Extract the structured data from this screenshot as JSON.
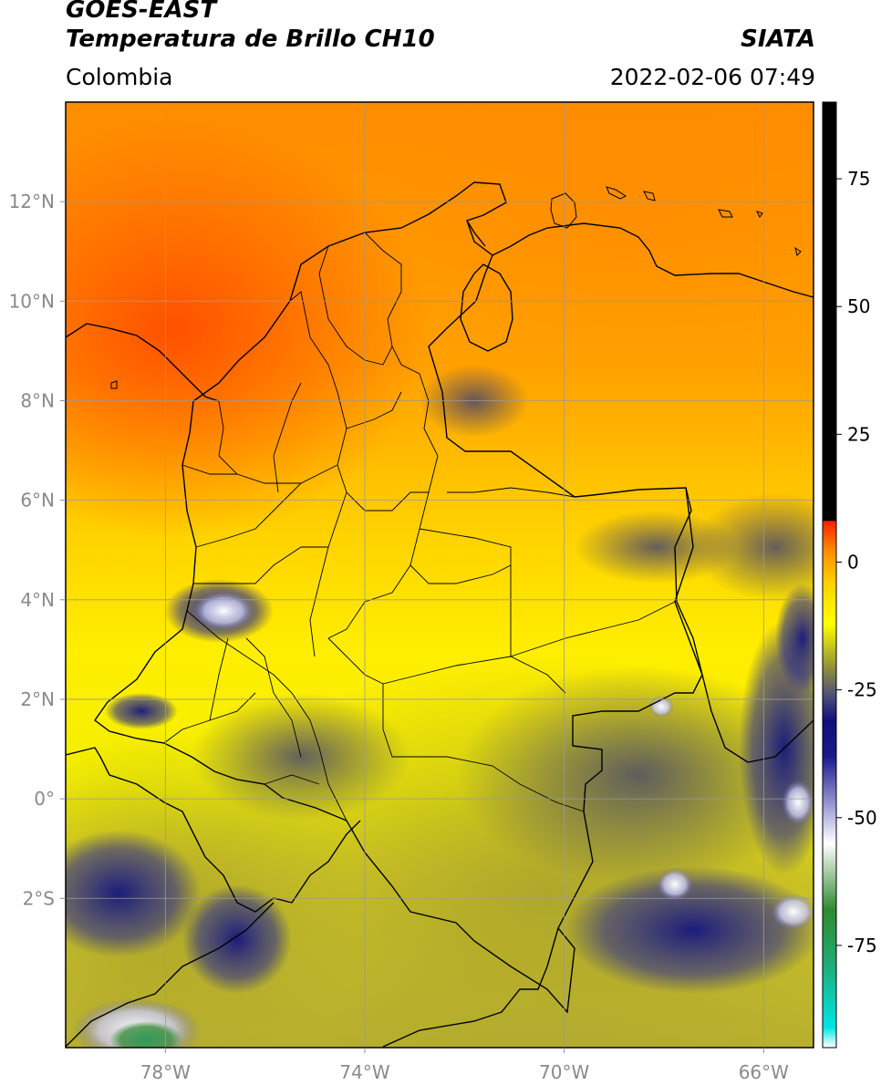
{
  "header": {
    "title_line1": "GOES-EAST",
    "title_line2": "Temperatura de Brillo CH10",
    "region": "Colombia",
    "source": "SIATA",
    "timestamp": "2022-02-06 07:49"
  },
  "map": {
    "lon_range": [
      -80,
      -65
    ],
    "lat_range": [
      -5,
      14
    ],
    "lon_ticks": [
      {
        "value": -78,
        "label": "78°W"
      },
      {
        "value": -74,
        "label": "74°W"
      },
      {
        "value": -70,
        "label": "70°W"
      },
      {
        "value": -66,
        "label": "66°W"
      }
    ],
    "lat_ticks": [
      {
        "value": 12,
        "label": "12°N"
      },
      {
        "value": 10,
        "label": "10°N"
      },
      {
        "value": 8,
        "label": "8°N"
      },
      {
        "value": 6,
        "label": "6°N"
      },
      {
        "value": 4,
        "label": "4°N"
      },
      {
        "value": 2,
        "label": "2°N"
      },
      {
        "value": 0,
        "label": "0°"
      },
      {
        "value": -2,
        "label": "2°S"
      }
    ],
    "grid": true,
    "grid_color": "#9a9a9a",
    "border_color": "#000000"
  },
  "colorbar": {
    "range": [
      -95,
      90
    ],
    "ticks": [
      {
        "value": 75,
        "label": "75"
      },
      {
        "value": 50,
        "label": "50"
      },
      {
        "value": 25,
        "label": "25"
      },
      {
        "value": 0,
        "label": "0"
      },
      {
        "value": -25,
        "label": "-25"
      },
      {
        "value": -50,
        "label": "-50"
      },
      {
        "value": -75,
        "label": "-75"
      }
    ],
    "stops": [
      {
        "value": -95,
        "color": "#ffffff"
      },
      {
        "value": -91,
        "color": "#00e5e5"
      },
      {
        "value": -78,
        "color": "#22a870"
      },
      {
        "value": -68,
        "color": "#2f8a2f"
      },
      {
        "value": -55,
        "color": "#ffffff"
      },
      {
        "value": -48,
        "color": "#a0a0d8"
      },
      {
        "value": -38,
        "color": "#1a1a8a"
      },
      {
        "value": -31,
        "color": "#10107a"
      },
      {
        "value": -26,
        "color": "#505078"
      },
      {
        "value": -21,
        "color": "#8c8c3c"
      },
      {
        "value": -12,
        "color": "#ffff00"
      },
      {
        "value": -4,
        "color": "#ffd000"
      },
      {
        "value": 2,
        "color": "#ff9000"
      },
      {
        "value": 8,
        "color": "#ff2000"
      },
      {
        "value": 8.1,
        "color": "#000000"
      },
      {
        "value": 90,
        "color": "#000000"
      }
    ]
  }
}
